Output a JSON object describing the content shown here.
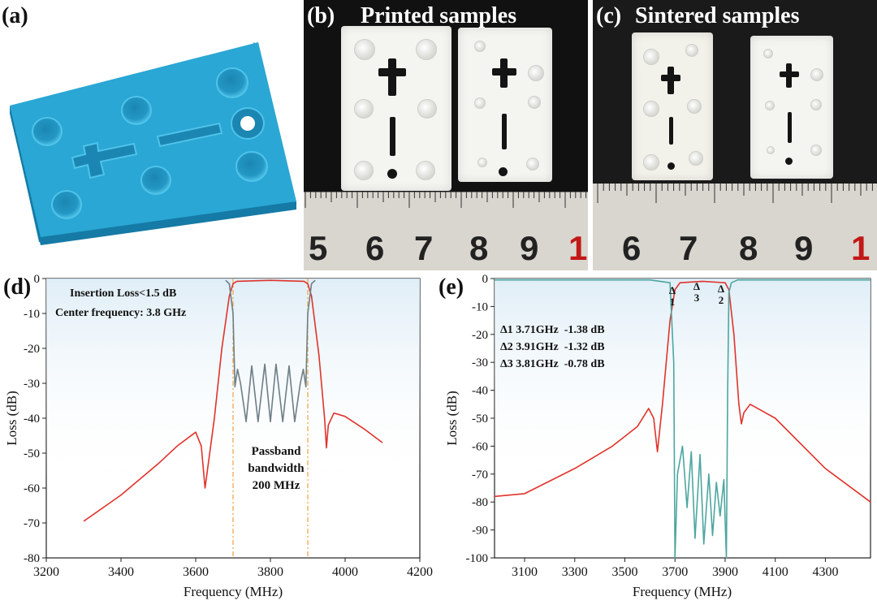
{
  "panels": {
    "a": {
      "label": "(a)"
    },
    "b": {
      "label": "(b)",
      "title": "Printed samples",
      "ruler_numbers": [
        "5",
        "6",
        "7",
        "8",
        "9",
        "1"
      ]
    },
    "c": {
      "label": "(c)",
      "title": "Sintered samples",
      "ruler_numbers": [
        "6",
        "7",
        "8",
        "9",
        "1"
      ]
    },
    "d": {
      "label": "(d)",
      "annotations": {
        "insertion_loss": "Insertion Loss<1.5 dB",
        "center_frequency": "Center frequency: 3.8 GHz",
        "passband_line1": "Passband",
        "passband_line2": "bandwidth",
        "passband_line3": "200 MHz"
      }
    },
    "e": {
      "label": "(e)",
      "markers": [
        {
          "symbol": "Δ",
          "index": "1",
          "text": "Δ1 3.71GHz  -1.38 dB"
        },
        {
          "symbol": "Δ",
          "index": "2",
          "text": "Δ2 3.91GHz  -1.32 dB"
        },
        {
          "symbol": "Δ",
          "index": "3",
          "text": "Δ3 3.81GHz  -0.78 dB"
        }
      ]
    }
  },
  "colors": {
    "model_blue": "#2aa7d4",
    "s21_red": "#e0332b",
    "s11_gray": "#6e7e86",
    "s11_teal": "#4da6a0",
    "band_fill": "#dcecf6",
    "guide_orange": "#f0a040"
  },
  "chart_data": [
    {
      "type": "line",
      "panel": "d",
      "xlabel": "Frequency (MHz)",
      "ylabel": "Loss (dB)",
      "xlim": [
        3200,
        4200
      ],
      "ylim": [
        -80,
        0
      ],
      "xticks": [
        3200,
        3400,
        3600,
        3800,
        4000,
        4200
      ],
      "yticks": [
        0,
        -10,
        -20,
        -30,
        -40,
        -50,
        -60,
        -70,
        -80
      ],
      "guides_x": [
        3700,
        3900
      ],
      "series": [
        {
          "color": "#e0332b",
          "x": [
            3300,
            3400,
            3500,
            3550,
            3600,
            3615,
            3625,
            3635,
            3650,
            3670,
            3690,
            3700,
            3710,
            3800,
            3890,
            3900,
            3910,
            3930,
            3945,
            3950,
            3955,
            3970,
            4000,
            4050,
            4100
          ],
          "y": [
            -69.5,
            -62,
            -53,
            -48,
            -44,
            -48,
            -60,
            -52,
            -40,
            -20,
            -5,
            -1.5,
            -0.8,
            -0.5,
            -0.8,
            -1.5,
            -5,
            -22,
            -40,
            -48.5,
            -42,
            -38.5,
            -39.5,
            -43,
            -47
          ]
        },
        {
          "color": "#6e7e86",
          "x": [
            3680,
            3690,
            3700,
            3705,
            3712,
            3720,
            3735,
            3750,
            3767,
            3785,
            3800,
            3815,
            3833,
            3850,
            3865,
            3880,
            3888,
            3895,
            3900,
            3910,
            3920
          ],
          "y": [
            -0.5,
            -1.5,
            -10,
            -31,
            -26,
            -30,
            -41,
            -25,
            -41,
            -24.5,
            -41,
            -24.5,
            -41,
            -25,
            -41,
            -30,
            -26,
            -31,
            -10,
            -1.5,
            -0.5
          ]
        }
      ]
    },
    {
      "type": "line",
      "panel": "e",
      "xlabel": "Frequency (MHz)",
      "ylabel": "Loss (dB)",
      "xlim": [
        2980,
        4480
      ],
      "ylim": [
        -100,
        0
      ],
      "xticks": [
        3100,
        3300,
        3500,
        3700,
        3900,
        4100,
        4300
      ],
      "yticks": [
        0,
        -10,
        -20,
        -30,
        -40,
        -50,
        -60,
        -70,
        -80,
        -90,
        -100
      ],
      "series": [
        {
          "color": "#e0332b",
          "x": [
            2980,
            3100,
            3300,
            3450,
            3550,
            3595,
            3615,
            3630,
            3650,
            3680,
            3700,
            3720,
            3810,
            3900,
            3915,
            3935,
            3955,
            3965,
            3975,
            4000,
            4100,
            4300,
            4480
          ],
          "y": [
            -78,
            -77,
            -68,
            -60,
            -53,
            -46.5,
            -50,
            -62,
            -45,
            -15,
            -4,
            -1.5,
            -1,
            -1.5,
            -4,
            -20,
            -45,
            -52,
            -48,
            -45,
            -50,
            -68,
            -80
          ]
        },
        {
          "color": "#4da6a0",
          "x": [
            2980,
            3600,
            3680,
            3695,
            3700,
            3705,
            3710,
            3730,
            3748,
            3765,
            3780,
            3800,
            3815,
            3835,
            3850,
            3865,
            3880,
            3895,
            3905,
            3910,
            3915,
            3925,
            3950,
            4480
          ],
          "y": [
            -0.5,
            -0.5,
            -1.5,
            -30,
            -100,
            -85,
            -70,
            -60,
            -82,
            -62,
            -93,
            -63,
            -95,
            -70,
            -92,
            -73,
            -85,
            -72,
            -100,
            -40,
            -5,
            -1.5,
            -0.5,
            -0.5
          ]
        }
      ]
    }
  ]
}
